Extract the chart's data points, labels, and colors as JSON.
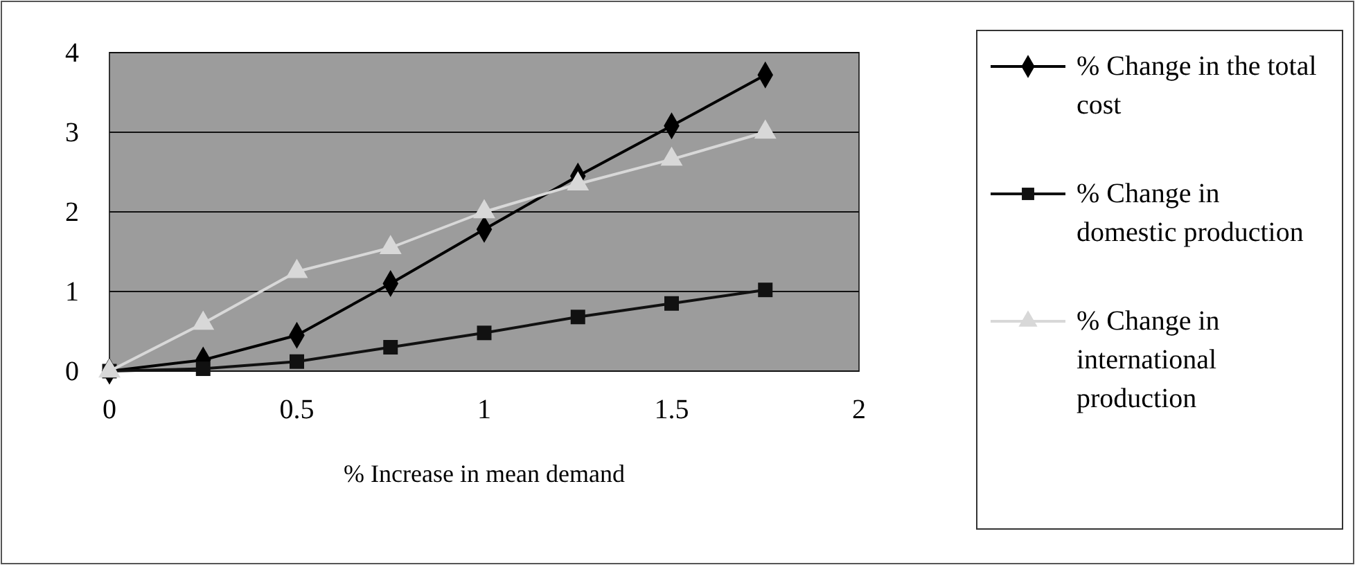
{
  "chart_data": {
    "type": "line",
    "xlabel": "% Increase in mean demand",
    "x": [
      0,
      0.25,
      0.5,
      0.75,
      1,
      1.25,
      1.5,
      1.75
    ],
    "xlim": [
      0,
      2
    ],
    "xticks": [
      0,
      0.5,
      1,
      1.5,
      2
    ],
    "ylim": [
      0,
      4
    ],
    "yticks": [
      0,
      1,
      2,
      3,
      4
    ],
    "grid": "y",
    "legend": "right",
    "series": [
      {
        "name": "% Change in the total cost",
        "color": "#000000",
        "marker": "diamond",
        "values": [
          0,
          0.14,
          0.45,
          1.1,
          1.78,
          2.45,
          3.08,
          3.72
        ]
      },
      {
        "name": "% Change in domestic production",
        "color": "#111111",
        "marker": "square",
        "values": [
          0,
          0.03,
          0.12,
          0.3,
          0.48,
          0.68,
          0.85,
          1.02
        ]
      },
      {
        "name": "% Change in international production",
        "color": "#d8d8d8",
        "marker": "triangle",
        "values": [
          0,
          0.6,
          1.25,
          1.55,
          2.0,
          2.35,
          2.66,
          3.0
        ]
      }
    ]
  }
}
